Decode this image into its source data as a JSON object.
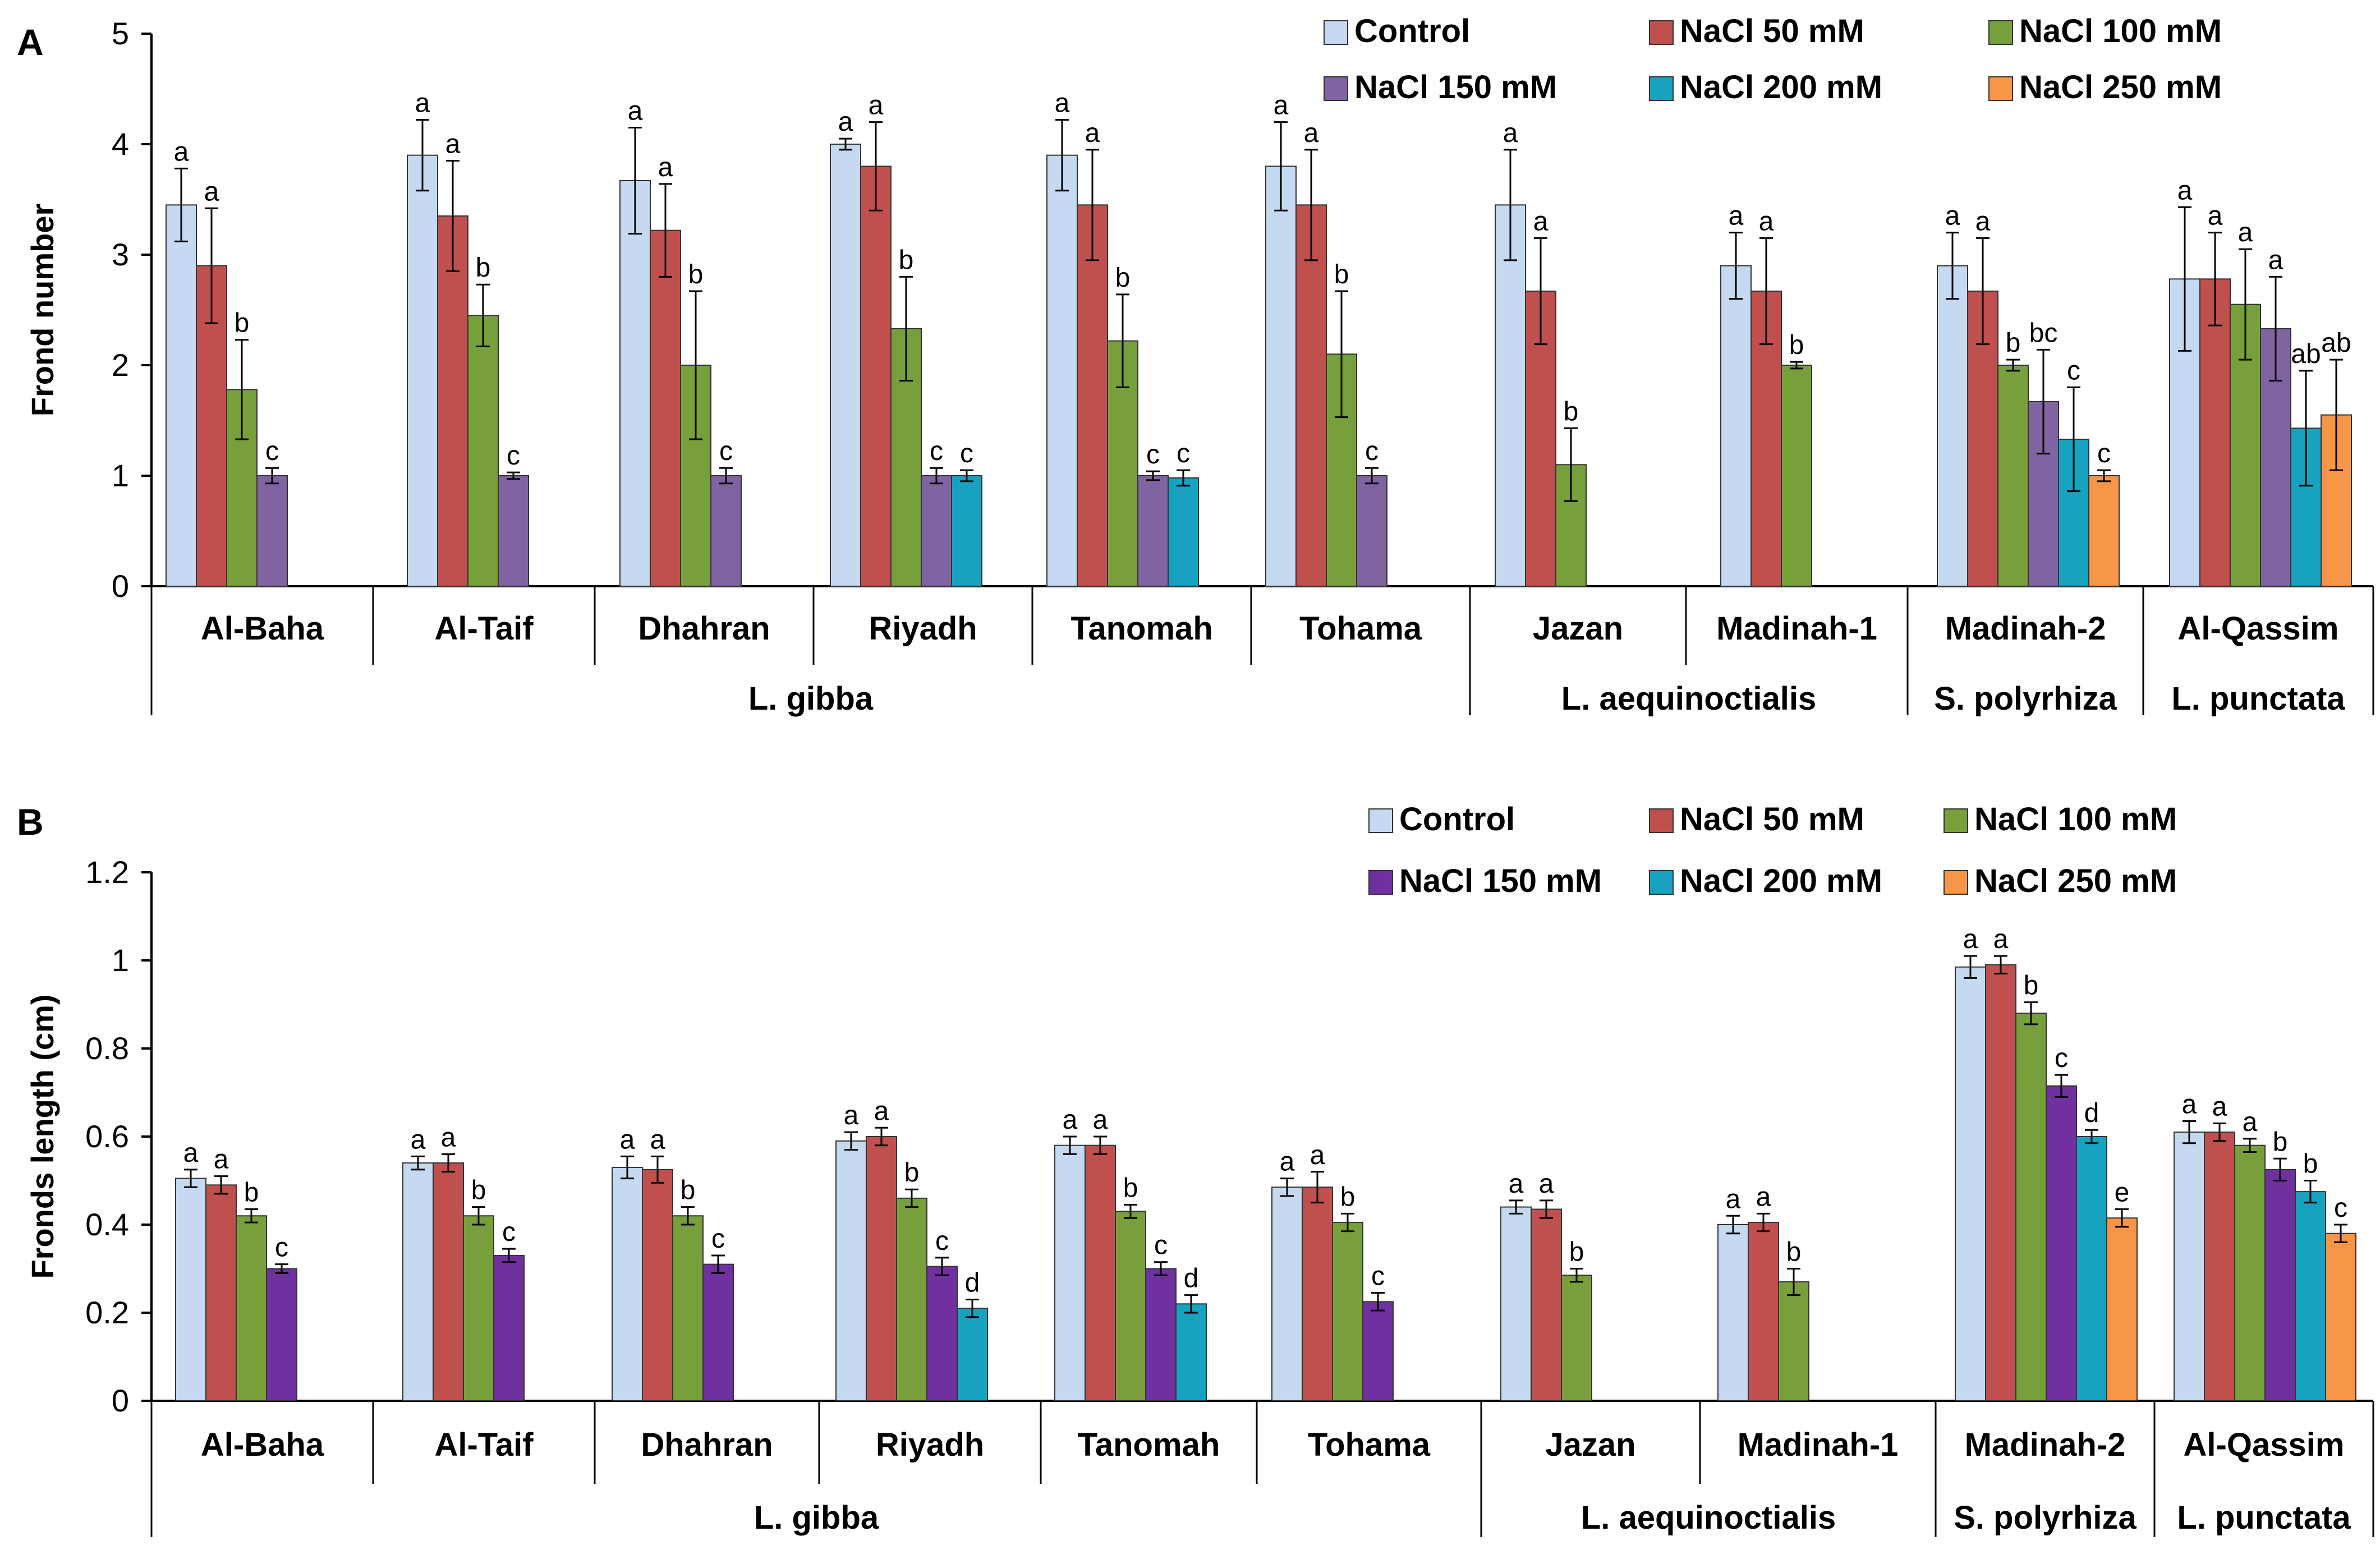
{
  "colors": {
    "Control": "#c5d9f1",
    "NaCl 50 mM": "#c0504d",
    "NaCl 100 mM": "#77a03c",
    "NaCl 150 mM": "#8064a2",
    "NaCl 200 mM": "#17a2c0",
    "NaCl 250 mM": "#f79646",
    "NaCl 150 mM (B)": "#7030a0"
  },
  "chart_data": [
    {
      "type": "bar",
      "panel_label": "A",
      "ylabel": "Frond number",
      "ylim": [
        0,
        5
      ],
      "yticks": [
        "0",
        "1",
        "2",
        "3",
        "4",
        "5"
      ],
      "legend": [
        "Control",
        "NaCl 50 mM",
        "NaCl 100 mM",
        "NaCl 150 mM",
        "NaCl 200 mM",
        "NaCl 250 mM"
      ],
      "legend_placement": "top-right",
      "categories": [
        "Al-Baha",
        "Al-Taif",
        "Dhahran",
        "Riyadh",
        "Tanomah",
        "Tohama",
        "Jazan",
        "Madinah-1",
        "Madinah-2",
        "Al-Qassim"
      ],
      "groups": [
        {
          "label": "L. gibba",
          "from": 0,
          "to": 5
        },
        {
          "label": "L. aequinoctialis",
          "from": 6,
          "to": 7
        },
        {
          "label": "S. polyrhiza",
          "from": 8,
          "to": 8
        },
        {
          "label": "L. punctata",
          "from": 9,
          "to": 9
        }
      ],
      "series": [
        {
          "name": "Control",
          "values": [
            3.45,
            3.9,
            3.67,
            4.0,
            3.9,
            3.8,
            3.45,
            2.9,
            2.9,
            2.78
          ],
          "errors": [
            0.33,
            0.32,
            0.48,
            0.05,
            0.32,
            0.4,
            0.5,
            0.3,
            0.3,
            0.65
          ],
          "letters": [
            "a",
            "a",
            "a",
            "a",
            "a",
            "a",
            "a",
            "a",
            "a",
            "a"
          ]
        },
        {
          "name": "NaCl 50 mM",
          "values": [
            2.9,
            3.35,
            3.22,
            3.8,
            3.45,
            3.45,
            2.67,
            2.67,
            2.67,
            2.78
          ],
          "errors": [
            0.52,
            0.5,
            0.42,
            0.4,
            0.5,
            0.5,
            0.48,
            0.48,
            0.48,
            0.42
          ],
          "letters": [
            "a",
            "a",
            "a",
            "a",
            "a",
            "a",
            "a",
            "a",
            "a",
            "a"
          ]
        },
        {
          "name": "NaCl 100 mM",
          "values": [
            1.78,
            2.45,
            2.0,
            2.33,
            2.22,
            2.1,
            1.1,
            2.0,
            2.0,
            2.55
          ],
          "errors": [
            0.45,
            0.28,
            0.67,
            0.47,
            0.42,
            0.57,
            0.33,
            0.03,
            0.05,
            0.5
          ],
          "letters": [
            "b",
            "b",
            "b",
            "b",
            "b",
            "b",
            "b",
            "b",
            "b",
            "a"
          ]
        },
        {
          "name": "NaCl 150 mM",
          "values": [
            1.0,
            1.0,
            1.0,
            1.0,
            1.0,
            1.0,
            null,
            null,
            1.67,
            2.33
          ],
          "errors": [
            0.07,
            0.03,
            0.07,
            0.07,
            0.04,
            0.07,
            null,
            null,
            0.47,
            0.47
          ],
          "letters": [
            "c",
            "c",
            "c",
            "c",
            "c",
            "c",
            null,
            null,
            "bc",
            "a"
          ]
        },
        {
          "name": "NaCl 200 mM",
          "values": [
            null,
            null,
            null,
            1.0,
            0.98,
            null,
            null,
            null,
            1.33,
            1.43
          ],
          "errors": [
            null,
            null,
            null,
            0.05,
            0.07,
            null,
            null,
            null,
            0.47,
            0.52
          ],
          "letters": [
            null,
            null,
            null,
            "c",
            "c",
            null,
            null,
            null,
            "c",
            "ab"
          ]
        },
        {
          "name": "NaCl 250 mM",
          "values": [
            null,
            null,
            null,
            null,
            null,
            null,
            null,
            null,
            1.0,
            1.55
          ],
          "errors": [
            null,
            null,
            null,
            null,
            null,
            null,
            null,
            null,
            0.05,
            0.5
          ],
          "letters": [
            null,
            null,
            null,
            null,
            null,
            null,
            null,
            null,
            "c",
            "ab"
          ]
        }
      ]
    },
    {
      "type": "bar",
      "panel_label": "B",
      "ylabel": "Fronds length (cm)",
      "ylim": [
        0,
        1.2
      ],
      "yticks": [
        "0",
        "0.2",
        "0.4",
        "0.6",
        "0.8",
        "1",
        "1.2"
      ],
      "legend": [
        "Control",
        "NaCl 50 mM",
        "NaCl 100 mM",
        "NaCl 150 mM",
        "NaCl 200 mM",
        "NaCl 250 mM"
      ],
      "legend_placement": "top-right",
      "categories": [
        "Al-Baha",
        "Al-Taif",
        "Dhahran",
        "Riyadh",
        "Tanomah",
        "Tohama",
        "Jazan",
        "Madinah-1",
        "Madinah-2",
        "Al-Qassim"
      ],
      "groups": [
        {
          "label": "L. gibba",
          "from": 0,
          "to": 5
        },
        {
          "label": "L. aequinoctialis",
          "from": 6,
          "to": 7
        },
        {
          "label": "S. polyrhiza",
          "from": 8,
          "to": 8
        },
        {
          "label": "L. punctata",
          "from": 9,
          "to": 9
        }
      ],
      "series": [
        {
          "name": "Control",
          "values": [
            0.505,
            0.54,
            0.53,
            0.59,
            0.58,
            0.485,
            0.44,
            0.4,
            0.985,
            0.61
          ],
          "errors": [
            0.02,
            0.015,
            0.025,
            0.02,
            0.02,
            0.02,
            0.015,
            0.02,
            0.025,
            0.025
          ],
          "letters": [
            "a",
            "a",
            "a",
            "a",
            "a",
            "a",
            "a",
            "a",
            "a",
            "a"
          ]
        },
        {
          "name": "NaCl 50 mM",
          "values": [
            0.49,
            0.54,
            0.525,
            0.6,
            0.58,
            0.485,
            0.435,
            0.405,
            0.99,
            0.61
          ],
          "errors": [
            0.02,
            0.02,
            0.03,
            0.02,
            0.02,
            0.035,
            0.02,
            0.02,
            0.02,
            0.02
          ],
          "letters": [
            "a",
            "a",
            "a",
            "a",
            "a",
            "a",
            "a",
            "a",
            "a",
            "a"
          ]
        },
        {
          "name": "NaCl 100 mM",
          "values": [
            0.42,
            0.42,
            0.42,
            0.46,
            0.43,
            0.405,
            0.285,
            0.27,
            0.88,
            0.58
          ],
          "errors": [
            0.015,
            0.02,
            0.02,
            0.02,
            0.015,
            0.02,
            0.015,
            0.03,
            0.025,
            0.015
          ],
          "letters": [
            "b",
            "b",
            "b",
            "b",
            "b",
            "b",
            "b",
            "b",
            "b",
            "a"
          ]
        },
        {
          "name": "NaCl 150 mM",
          "values": [
            0.3,
            0.33,
            0.31,
            0.305,
            0.3,
            0.225,
            null,
            null,
            0.715,
            0.525
          ],
          "errors": [
            0.01,
            0.015,
            0.02,
            0.02,
            0.015,
            0.02,
            null,
            null,
            0.025,
            0.025
          ],
          "letters": [
            "c",
            "c",
            "c",
            "c",
            "c",
            "c",
            null,
            null,
            "c",
            "b"
          ]
        },
        {
          "name": "NaCl 200 mM",
          "values": [
            null,
            null,
            null,
            0.21,
            0.22,
            null,
            null,
            null,
            0.6,
            0.475
          ],
          "errors": [
            null,
            null,
            null,
            0.02,
            0.02,
            null,
            null,
            null,
            0.015,
            0.025
          ],
          "letters": [
            null,
            null,
            null,
            "d",
            "d",
            null,
            null,
            null,
            "d",
            "b"
          ]
        },
        {
          "name": "NaCl 250 mM",
          "values": [
            null,
            null,
            null,
            null,
            null,
            null,
            null,
            null,
            0.415,
            0.38
          ],
          "errors": [
            null,
            null,
            null,
            null,
            null,
            null,
            null,
            null,
            0.02,
            0.02
          ],
          "letters": [
            null,
            null,
            null,
            null,
            null,
            null,
            null,
            null,
            "e",
            "c"
          ]
        }
      ]
    }
  ]
}
